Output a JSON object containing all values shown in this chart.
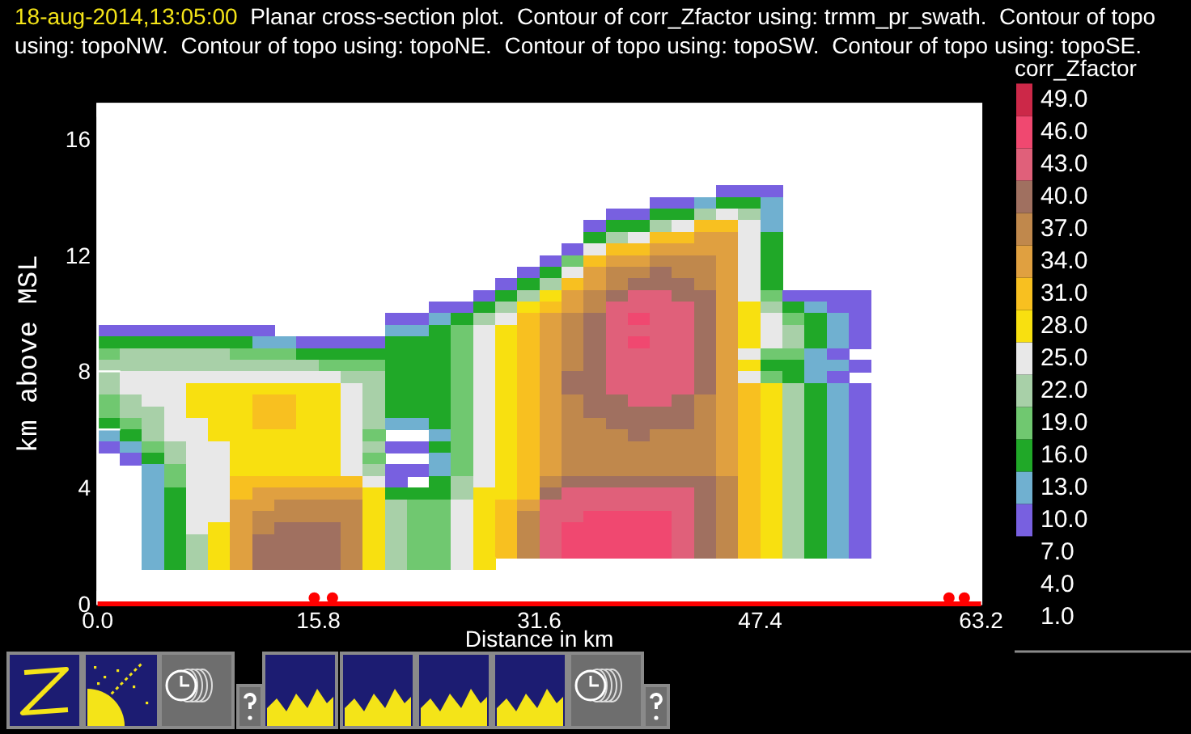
{
  "chart_data": {
    "type": "heatmap",
    "title": "18-aug-2014,13:05:00  Planar cross-section plot.  Contour of corr_Zfactor using: trmm_pr_swath.  Contour of topo using: topoNW.  Contour of topo using: topoNE.  Contour of topo using: topoSW.  Contour of topo using: topoSE.",
    "xlabel": "Distance in km",
    "ylabel": "km above MSL",
    "clabel": "corr_Zfactor",
    "x": [
      0.79,
      2.37,
      3.95,
      5.53,
      7.11,
      8.69,
      10.27,
      11.85,
      13.43,
      15.01,
      16.59,
      18.17,
      19.75,
      21.33,
      22.91,
      24.49,
      26.07,
      27.65,
      29.23,
      30.81,
      32.39,
      33.97,
      35.55,
      37.13,
      38.71,
      40.29,
      41.87,
      43.45,
      45.03,
      46.61,
      48.19,
      49.77,
      51.35,
      52.93,
      54.51
    ],
    "y": [
      14.2,
      13.8,
      13.4,
      13.0,
      12.6,
      12.2,
      11.8,
      11.4,
      11.0,
      10.6,
      10.2,
      9.8,
      9.4,
      9.0,
      8.6,
      8.2,
      7.8,
      7.4,
      7.0,
      6.6,
      6.2,
      5.8,
      5.4,
      5.0,
      4.6,
      4.2,
      3.8,
      3.4,
      3.0,
      2.6,
      2.2,
      1.8,
      1.4
    ],
    "xlim": [
      0,
      63.2
    ],
    "xticks": [
      {
        "value": 0,
        "label": "0.0"
      },
      {
        "value": 7.9,
        "label": null
      },
      {
        "value": 15.8,
        "label": "15.8"
      },
      {
        "value": 23.7,
        "label": null
      },
      {
        "value": 31.6,
        "label": "31.6"
      },
      {
        "value": 39.5,
        "label": null
      },
      {
        "value": 47.4,
        "label": "47.4"
      },
      {
        "value": 55.3,
        "label": null
      },
      {
        "value": 63.2,
        "label": "63.2"
      }
    ],
    "ylim": [
      0,
      17.2
    ],
    "yticks": [
      0,
      {
        "value": 2,
        "label": null
      },
      4,
      {
        "value": 6,
        "label": null
      },
      8,
      {
        "value": 10,
        "label": null
      },
      12,
      {
        "value": 14,
        "label": null
      },
      16
    ],
    "clim": [
      -0.5,
      50.5
    ],
    "cticks": [
      {
        "value": 1,
        "label": "1.0"
      },
      {
        "value": 4,
        "label": "4.0"
      },
      {
        "value": 7,
        "label": "7.0"
      },
      {
        "value": 10,
        "label": "10.0"
      },
      {
        "value": 13,
        "label": "13.0"
      },
      {
        "value": 16,
        "label": "16.0"
      },
      {
        "value": 19,
        "label": "19.0"
      },
      {
        "value": 22,
        "label": "22.0"
      },
      {
        "value": 25,
        "label": "25.0"
      },
      {
        "value": 28,
        "label": "28.0"
      },
      {
        "value": 31,
        "label": "31.0"
      },
      {
        "value": 34,
        "label": "34.0"
      },
      {
        "value": 37,
        "label": "37.0"
      },
      {
        "value": 40,
        "label": "40.0"
      },
      {
        "value": 43,
        "label": "43.0"
      },
      {
        "value": 46,
        "label": "46.0"
      },
      {
        "value": 49,
        "label": "49.0"
      }
    ],
    "colors": [
      "#000000",
      "#000000",
      "#000000",
      "#7860e0",
      "#70b0d0",
      "#20a828",
      "#70c870",
      "#a8d0a8",
      "#e8e8e8",
      "#f8e010",
      "#f8c020",
      "#e0a040",
      "#c0884c",
      "#a07060",
      "#e0607a",
      "#f04870",
      "#cc2848"
    ],
    "series": [
      {
        "type": "line",
        "color": "#ff0000",
        "x": [
          0,
          63.2
        ],
        "values": [
          0,
          0
        ]
      },
      {
        "type": "scatter",
        "color": "#ff0000",
        "x": [
          15.5,
          16.8,
          60.9,
          62.0
        ],
        "values": [
          0.2,
          0.2,
          0.2,
          0.2
        ]
      }
    ],
    "cells": [
      [
        null,
        null,
        null,
        null,
        null,
        null,
        null,
        null,
        null,
        null,
        null,
        null,
        null,
        null,
        null,
        null,
        null,
        null,
        null,
        null,
        null,
        null,
        null,
        null,
        null,
        null,
        null,
        null,
        10,
        10,
        10,
        null,
        null,
        null,
        null
      ],
      [
        null,
        null,
        null,
        null,
        null,
        null,
        null,
        null,
        null,
        null,
        null,
        null,
        null,
        null,
        null,
        null,
        null,
        null,
        null,
        null,
        null,
        null,
        null,
        null,
        null,
        10,
        10,
        13,
        16,
        16,
        13,
        null,
        null,
        null,
        null
      ],
      [
        null,
        null,
        null,
        null,
        null,
        null,
        null,
        null,
        null,
        null,
        null,
        null,
        null,
        null,
        null,
        null,
        null,
        null,
        null,
        null,
        null,
        null,
        null,
        10,
        10,
        16,
        16,
        22,
        25,
        22,
        13,
        null,
        null,
        null,
        null
      ],
      [
        null,
        null,
        null,
        null,
        null,
        null,
        null,
        null,
        null,
        null,
        null,
        null,
        null,
        null,
        null,
        null,
        null,
        null,
        null,
        null,
        null,
        null,
        10,
        16,
        16,
        22,
        25,
        31,
        31,
        25,
        13,
        null,
        null,
        null,
        null
      ],
      [
        null,
        null,
        null,
        null,
        null,
        null,
        null,
        null,
        null,
        null,
        null,
        null,
        null,
        null,
        null,
        null,
        null,
        null,
        null,
        null,
        null,
        null,
        16,
        22,
        25,
        31,
        31,
        34,
        34,
        25,
        16,
        null,
        null,
        null,
        null
      ],
      [
        null,
        null,
        null,
        null,
        null,
        null,
        null,
        null,
        null,
        null,
        null,
        null,
        null,
        null,
        null,
        null,
        null,
        null,
        null,
        null,
        null,
        10,
        25,
        31,
        31,
        34,
        34,
        34,
        34,
        25,
        16,
        null,
        null,
        null,
        null
      ],
      [
        null,
        null,
        null,
        null,
        null,
        null,
        null,
        null,
        null,
        null,
        null,
        null,
        null,
        null,
        null,
        null,
        null,
        null,
        null,
        null,
        10,
        19,
        31,
        34,
        34,
        37,
        37,
        37,
        34,
        25,
        16,
        null,
        null,
        null,
        null
      ],
      [
        null,
        null,
        null,
        null,
        null,
        null,
        null,
        null,
        null,
        null,
        null,
        null,
        null,
        null,
        null,
        null,
        null,
        null,
        null,
        10,
        16,
        25,
        34,
        37,
        37,
        40,
        37,
        37,
        34,
        25,
        16,
        null,
        null,
        null,
        null
      ],
      [
        null,
        null,
        null,
        null,
        null,
        null,
        null,
        null,
        null,
        null,
        null,
        null,
        null,
        null,
        null,
        null,
        null,
        null,
        10,
        16,
        22,
        31,
        34,
        37,
        40,
        40,
        40,
        37,
        34,
        25,
        16,
        null,
        null,
        null,
        null
      ],
      [
        null,
        null,
        null,
        null,
        null,
        null,
        null,
        null,
        null,
        null,
        null,
        null,
        null,
        null,
        null,
        null,
        null,
        10,
        16,
        22,
        28,
        34,
        37,
        40,
        43,
        43,
        40,
        40,
        34,
        25,
        19,
        10,
        10,
        10,
        10
      ],
      [
        null,
        null,
        null,
        null,
        null,
        null,
        null,
        null,
        null,
        null,
        null,
        null,
        null,
        null,
        null,
        10,
        10,
        16,
        22,
        28,
        31,
        34,
        37,
        43,
        43,
        43,
        43,
        40,
        34,
        28,
        22,
        16,
        13,
        10,
        10
      ],
      [
        null,
        null,
        null,
        null,
        null,
        null,
        null,
        null,
        null,
        null,
        null,
        null,
        null,
        10,
        10,
        13,
        16,
        22,
        25,
        31,
        34,
        37,
        40,
        43,
        46,
        43,
        43,
        40,
        34,
        28,
        25,
        19,
        16,
        13,
        10
      ],
      [
        10,
        10,
        10,
        10,
        10,
        10,
        10,
        10,
        null,
        null,
        null,
        null,
        null,
        13,
        13,
        16,
        19,
        25,
        28,
        31,
        34,
        37,
        40,
        43,
        43,
        43,
        43,
        40,
        34,
        28,
        25,
        22,
        16,
        13,
        10
      ],
      [
        16,
        16,
        16,
        16,
        16,
        16,
        16,
        13,
        13,
        10,
        10,
        10,
        10,
        16,
        16,
        16,
        19,
        25,
        28,
        31,
        34,
        37,
        40,
        43,
        46,
        43,
        43,
        40,
        34,
        28,
        25,
        22,
        16,
        13,
        10
      ],
      [
        19,
        22,
        22,
        22,
        22,
        22,
        19,
        19,
        19,
        16,
        16,
        16,
        16,
        16,
        16,
        16,
        19,
        25,
        28,
        31,
        34,
        37,
        40,
        43,
        43,
        43,
        43,
        40,
        34,
        25,
        19,
        19,
        13,
        10,
        null
      ],
      [
        22,
        22,
        22,
        22,
        22,
        22,
        22,
        22,
        22,
        22,
        19,
        19,
        19,
        16,
        16,
        16,
        19,
        25,
        28,
        31,
        34,
        37,
        40,
        43,
        43,
        43,
        43,
        40,
        34,
        28,
        16,
        16,
        13,
        13,
        10
      ],
      [
        22,
        25,
        25,
        25,
        25,
        25,
        25,
        25,
        25,
        25,
        25,
        22,
        22,
        16,
        16,
        16,
        19,
        25,
        28,
        31,
        34,
        40,
        40,
        43,
        43,
        43,
        43,
        40,
        34,
        25,
        19,
        16,
        13,
        10,
        null
      ],
      [
        22,
        25,
        25,
        25,
        28,
        28,
        28,
        28,
        28,
        28,
        28,
        25,
        22,
        16,
        16,
        16,
        19,
        25,
        28,
        31,
        34,
        40,
        40,
        43,
        43,
        43,
        43,
        40,
        34,
        31,
        28,
        22,
        16,
        13,
        10
      ],
      [
        19,
        22,
        25,
        25,
        28,
        28,
        28,
        31,
        31,
        28,
        28,
        25,
        22,
        16,
        16,
        16,
        19,
        25,
        28,
        31,
        34,
        37,
        40,
        40,
        43,
        43,
        40,
        37,
        34,
        31,
        28,
        22,
        16,
        13,
        10
      ],
      [
        19,
        22,
        22,
        25,
        28,
        28,
        28,
        31,
        31,
        28,
        28,
        25,
        22,
        16,
        16,
        16,
        19,
        25,
        28,
        31,
        34,
        37,
        40,
        40,
        40,
        40,
        40,
        37,
        34,
        31,
        28,
        22,
        16,
        13,
        10
      ],
      [
        16,
        19,
        22,
        25,
        25,
        28,
        28,
        31,
        31,
        28,
        28,
        25,
        22,
        13,
        13,
        16,
        19,
        25,
        28,
        31,
        34,
        37,
        37,
        40,
        40,
        40,
        40,
        37,
        34,
        31,
        28,
        22,
        16,
        13,
        10
      ],
      [
        13,
        16,
        22,
        25,
        25,
        28,
        28,
        28,
        28,
        28,
        28,
        25,
        19,
        null,
        null,
        13,
        19,
        25,
        28,
        31,
        34,
        37,
        37,
        37,
        40,
        37,
        37,
        37,
        34,
        31,
        28,
        22,
        16,
        13,
        10
      ],
      [
        10,
        13,
        19,
        22,
        25,
        25,
        28,
        28,
        28,
        28,
        28,
        25,
        22,
        10,
        10,
        16,
        19,
        25,
        28,
        31,
        34,
        37,
        37,
        37,
        37,
        37,
        37,
        37,
        34,
        31,
        28,
        22,
        16,
        13,
        10
      ],
      [
        null,
        10,
        16,
        22,
        25,
        25,
        28,
        28,
        28,
        28,
        28,
        25,
        19,
        null,
        null,
        13,
        19,
        25,
        28,
        31,
        34,
        37,
        37,
        37,
        37,
        37,
        37,
        37,
        34,
        31,
        28,
        22,
        16,
        13,
        10
      ],
      [
        null,
        null,
        13,
        19,
        25,
        25,
        28,
        28,
        28,
        28,
        28,
        25,
        22,
        10,
        10,
        13,
        19,
        25,
        28,
        31,
        34,
        37,
        37,
        37,
        37,
        37,
        37,
        37,
        34,
        31,
        28,
        22,
        16,
        13,
        10
      ],
      [
        null,
        null,
        13,
        19,
        25,
        25,
        31,
        31,
        31,
        31,
        31,
        31,
        25,
        10,
        null,
        16,
        22,
        25,
        28,
        31,
        37,
        40,
        40,
        40,
        40,
        40,
        40,
        40,
        37,
        31,
        28,
        22,
        16,
        13,
        10
      ],
      [
        null,
        null,
        13,
        16,
        25,
        25,
        31,
        34,
        34,
        34,
        34,
        34,
        28,
        16,
        16,
        16,
        22,
        28,
        28,
        31,
        40,
        43,
        43,
        43,
        43,
        43,
        43,
        40,
        37,
        31,
        28,
        22,
        16,
        13,
        10
      ],
      [
        null,
        null,
        13,
        16,
        25,
        25,
        34,
        34,
        37,
        37,
        37,
        37,
        28,
        22,
        19,
        19,
        25,
        28,
        31,
        34,
        43,
        43,
        43,
        43,
        43,
        43,
        43,
        40,
        37,
        31,
        28,
        22,
        16,
        13,
        10
      ],
      [
        null,
        null,
        13,
        16,
        25,
        25,
        34,
        37,
        37,
        37,
        37,
        37,
        28,
        22,
        19,
        19,
        25,
        28,
        31,
        37,
        43,
        43,
        46,
        46,
        46,
        46,
        43,
        40,
        37,
        31,
        28,
        22,
        16,
        13,
        10
      ],
      [
        null,
        null,
        13,
        16,
        25,
        28,
        34,
        37,
        40,
        40,
        40,
        37,
        28,
        22,
        19,
        19,
        25,
        28,
        31,
        37,
        43,
        46,
        46,
        46,
        46,
        46,
        43,
        40,
        37,
        31,
        28,
        22,
        16,
        13,
        10
      ],
      [
        null,
        null,
        13,
        16,
        22,
        28,
        34,
        40,
        40,
        40,
        40,
        37,
        28,
        22,
        19,
        19,
        25,
        28,
        31,
        37,
        43,
        46,
        46,
        46,
        46,
        46,
        43,
        40,
        37,
        31,
        28,
        22,
        16,
        13,
        10
      ],
      [
        null,
        null,
        13,
        16,
        22,
        28,
        34,
        40,
        40,
        40,
        40,
        37,
        28,
        22,
        19,
        19,
        25,
        28,
        31,
        37,
        43,
        46,
        46,
        46,
        46,
        46,
        43,
        40,
        37,
        31,
        28,
        22,
        16,
        13,
        10
      ],
      [
        null,
        null,
        13,
        16,
        22,
        28,
        34,
        40,
        40,
        40,
        40,
        37,
        28,
        22,
        19,
        19,
        25,
        28,
        null,
        null,
        null,
        null,
        null,
        null,
        null,
        null,
        null,
        null,
        null,
        null,
        null,
        null,
        null,
        null,
        null
      ]
    ]
  }
}
